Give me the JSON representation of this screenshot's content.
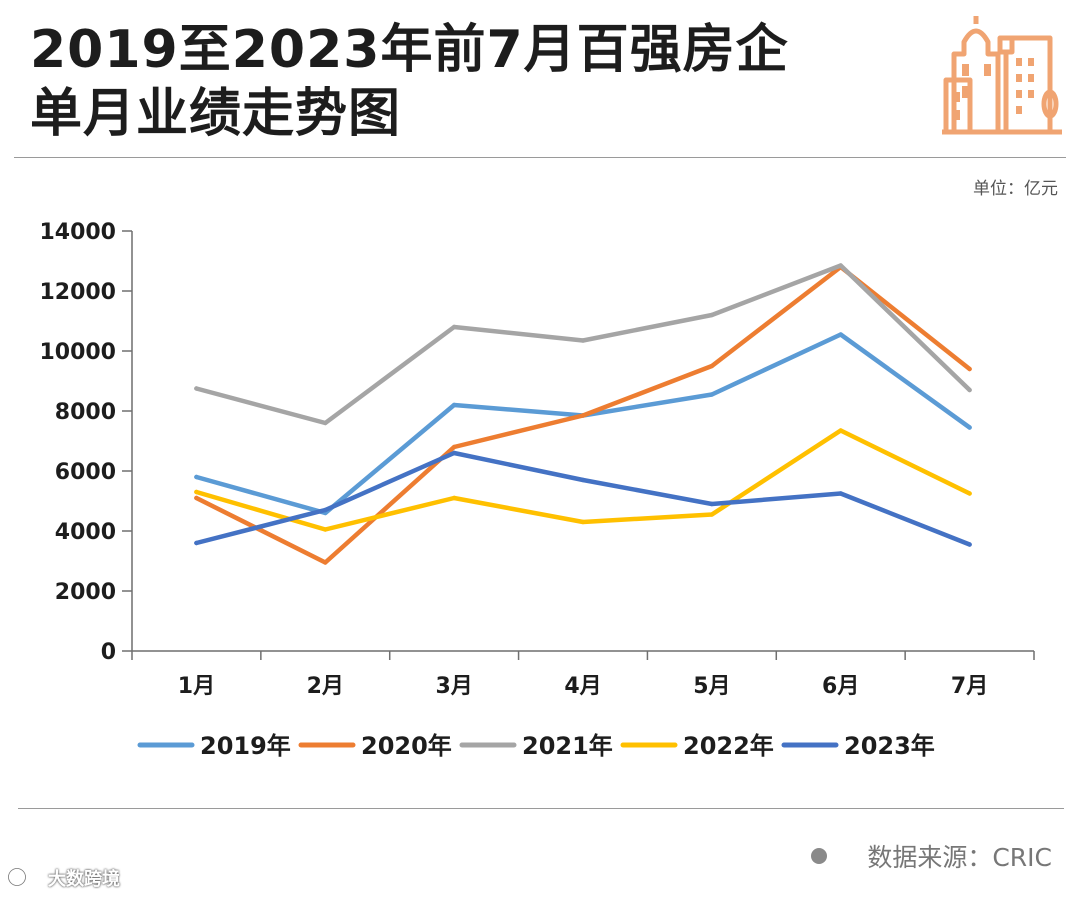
{
  "header": {
    "title_line1": "2019至2023年前7月百强房企",
    "title_line2": "单月业绩走势图",
    "unit": "单位：亿元",
    "icon": "city-buildings-icon"
  },
  "footer": {
    "source": "数据来源：CRIC",
    "watermark": "大数跨境",
    "watermark_icon": "chat-bubbles-icon"
  },
  "colors": {
    "2019年": "#5b9bd5",
    "2020年": "#ed7d31",
    "2021年": "#a5a5a5",
    "2022年": "#ffc000",
    "2023年": "#4472c4",
    "accent": "#f0a472"
  },
  "chart_data": {
    "type": "line",
    "title": "2019至2023年前7月百强房企单月业绩走势图",
    "unit": "亿元",
    "categories": [
      "1月",
      "2月",
      "3月",
      "4月",
      "5月",
      "6月",
      "7月"
    ],
    "ylim": [
      0,
      14000
    ],
    "yticks": [
      0,
      2000,
      4000,
      6000,
      8000,
      10000,
      12000,
      14000
    ],
    "grid": false,
    "legend": "bottom",
    "series": [
      {
        "name": "2019年",
        "values": [
          5800,
          4600,
          8200,
          7850,
          8550,
          10550,
          7450
        ]
      },
      {
        "name": "2020年",
        "values": [
          5100,
          2950,
          6800,
          7850,
          9500,
          12800,
          9400
        ]
      },
      {
        "name": "2021年",
        "values": [
          8750,
          7600,
          10800,
          10350,
          11200,
          12850,
          8700
        ]
      },
      {
        "name": "2022年",
        "values": [
          5300,
          4050,
          5100,
          4300,
          4550,
          7350,
          5250
        ]
      },
      {
        "name": "2023年",
        "values": [
          3600,
          4700,
          6600,
          5700,
          4900,
          5250,
          3550
        ]
      }
    ]
  }
}
